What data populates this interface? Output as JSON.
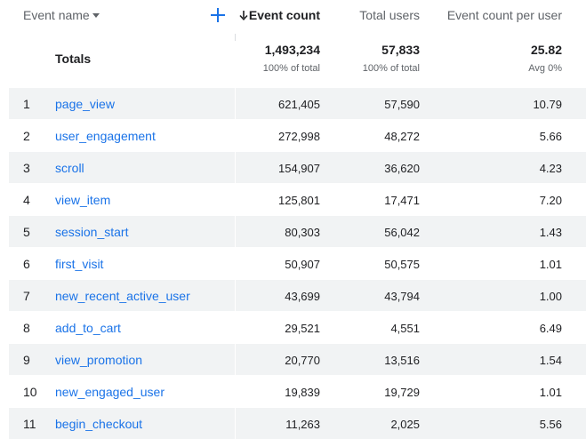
{
  "header": {
    "event_name_label": "Event name",
    "event_count_label": "Event count",
    "total_users_label": "Total users",
    "event_count_per_user_label": "Event count per user"
  },
  "totals": {
    "label": "Totals",
    "event_count": "1,493,234",
    "event_count_sub": "100% of total",
    "total_users": "57,833",
    "total_users_sub": "100% of total",
    "event_count_per_user": "25.82",
    "event_count_per_user_sub": "Avg 0%"
  },
  "rows": [
    {
      "index": "1",
      "event_name": "page_view",
      "event_count": "621,405",
      "total_users": "57,590",
      "ecpu": "10.79"
    },
    {
      "index": "2",
      "event_name": "user_engagement",
      "event_count": "272,998",
      "total_users": "48,272",
      "ecpu": "5.66"
    },
    {
      "index": "3",
      "event_name": "scroll",
      "event_count": "154,907",
      "total_users": "36,620",
      "ecpu": "4.23"
    },
    {
      "index": "4",
      "event_name": "view_item",
      "event_count": "125,801",
      "total_users": "17,471",
      "ecpu": "7.20"
    },
    {
      "index": "5",
      "event_name": "session_start",
      "event_count": "80,303",
      "total_users": "56,042",
      "ecpu": "1.43"
    },
    {
      "index": "6",
      "event_name": "first_visit",
      "event_count": "50,907",
      "total_users": "50,575",
      "ecpu": "1.01"
    },
    {
      "index": "7",
      "event_name": "new_recent_active_user",
      "event_count": "43,699",
      "total_users": "43,794",
      "ecpu": "1.00"
    },
    {
      "index": "8",
      "event_name": "add_to_cart",
      "event_count": "29,521",
      "total_users": "4,551",
      "ecpu": "6.49"
    },
    {
      "index": "9",
      "event_name": "view_promotion",
      "event_count": "20,770",
      "total_users": "13,516",
      "ecpu": "1.54"
    },
    {
      "index": "10",
      "event_name": "new_engaged_user",
      "event_count": "19,839",
      "total_users": "19,729",
      "ecpu": "1.01"
    },
    {
      "index": "11",
      "event_name": "begin_checkout",
      "event_count": "11,263",
      "total_users": "2,025",
      "ecpu": "5.56"
    }
  ],
  "icons": {
    "add": "plus-icon",
    "sort": "arrow-down-icon",
    "dropdown": "caret-down-icon"
  },
  "colors": {
    "accent": "#1a73e8",
    "stripe": "#f1f3f4"
  }
}
